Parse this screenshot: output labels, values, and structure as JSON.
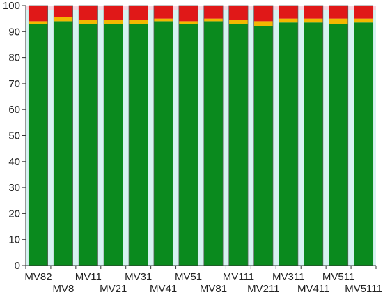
{
  "chart_data": {
    "type": "bar",
    "stacked": true,
    "categories": [
      "MV82",
      "MV8",
      "MV11",
      "MV21",
      "MV31",
      "MV41",
      "MV51",
      "MV81",
      "MV111",
      "MV211",
      "MV311",
      "MV411",
      "MV511",
      "MV5111"
    ],
    "series": [
      {
        "color": "#0a8a1e",
        "values": [
          93,
          94,
          93,
          93,
          93,
          94,
          93,
          94,
          93,
          92,
          93.5,
          93.5,
          93,
          93.5
        ]
      },
      {
        "color": "#f2b800",
        "values": [
          1,
          1.5,
          1.5,
          1.5,
          1.5,
          1,
          1,
          1,
          1.5,
          2,
          1.5,
          1.5,
          2,
          1.5
        ]
      },
      {
        "color": "#e01818",
        "values": [
          6,
          4.5,
          5.5,
          5.5,
          5.5,
          5,
          6,
          5,
          5.5,
          6,
          5,
          5,
          5,
          5
        ]
      }
    ],
    "ylim": [
      0,
      100
    ],
    "yticks": [
      "0",
      "10",
      "20",
      "30",
      "40",
      "50",
      "60",
      "70",
      "80",
      "90",
      "100"
    ],
    "xlabel": "",
    "ylabel": "",
    "title": "",
    "grid": false,
    "legend": false,
    "plot_background": "#d6f3f1",
    "top_band_color": "#f9d5de"
  }
}
